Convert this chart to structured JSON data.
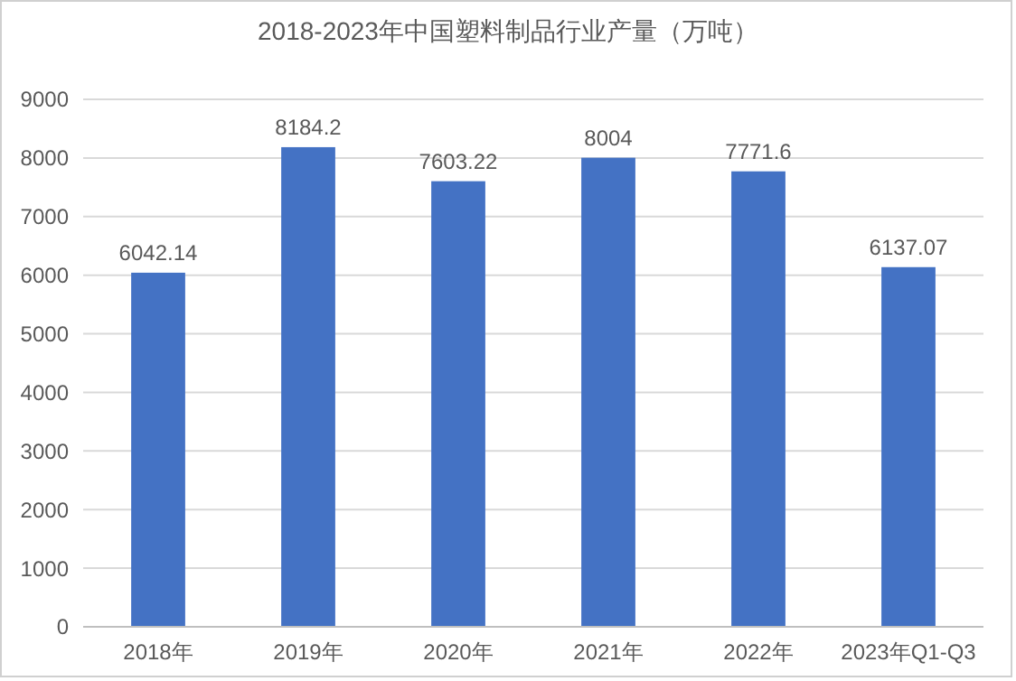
{
  "chart_data": {
    "type": "bar",
    "title": "2018-2023年中国塑料制品行业产量（万吨）",
    "categories": [
      "2018年",
      "2019年",
      "2020年",
      "2021年",
      "2022年",
      "2023年Q1-Q3"
    ],
    "values": [
      6042.14,
      8184.2,
      7603.22,
      8004,
      7771.6,
      6137.07
    ],
    "color": "#4472c4",
    "data_labels": true,
    "grid": "y",
    "ylim": [
      0,
      9000
    ],
    "yticks": [
      0,
      1000,
      2000,
      3000,
      4000,
      5000,
      6000,
      7000,
      8000,
      9000
    ]
  }
}
